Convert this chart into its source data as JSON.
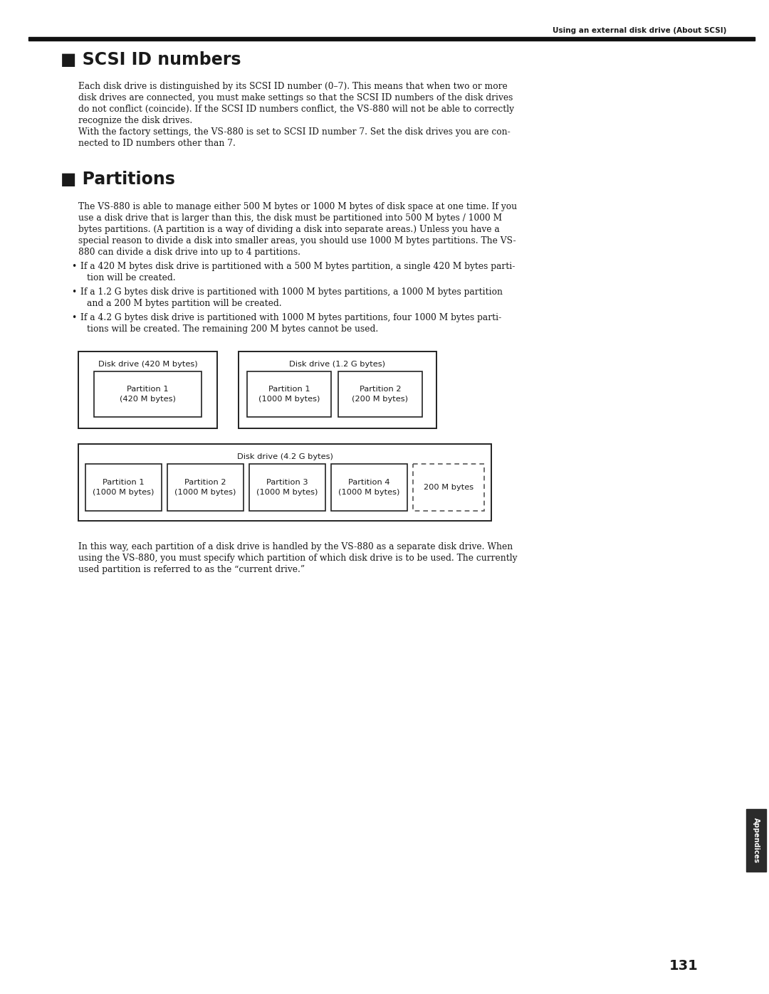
{
  "page_title": "Using an external disk drive (About SCSI)",
  "page_number": "131",
  "bg_color": "#ffffff",
  "text_color": "#1a1a1a",
  "section1_title": "■ SCSI ID numbers",
  "section2_title": "■ Partitions",
  "appendices_label": "Appendices",
  "body1_lines": [
    "Each disk drive is distinguished by its SCSI ID number (0–7). This means that when two or more",
    "disk drives are connected, you must make settings so that the SCSI ID numbers of the disk drives",
    "do not conflict (coincide). If the SCSI ID numbers conflict, the VS-880 will not be able to correctly",
    "recognize the disk drives.",
    "With the factory settings, the VS-880 is set to SCSI ID number 7. Set the disk drives you are con-",
    "nected to ID numbers other than 7."
  ],
  "body2_lines": [
    "The VS-880 is able to manage either 500 M bytes or 1000 M bytes of disk space at one time. If you",
    "use a disk drive that is larger than this, the disk must be partitioned into 500 M bytes / 1000 M",
    "bytes partitions. (A partition is a way of dividing a disk into separate areas.) Unless you have a",
    "special reason to divide a disk into smaller areas, you should use 1000 M bytes partitions. The VS-",
    "880 can divide a disk drive into up to 4 partitions."
  ],
  "bullet1_lines": [
    "If a 420 M bytes disk drive is partitioned with a 500 M bytes partition, a single 420 M bytes parti-",
    "tion will be created."
  ],
  "bullet2_lines": [
    "If a 1.2 G bytes disk drive is partitioned with 1000 M bytes partitions, a 1000 M bytes partition",
    "and a 200 M bytes partition will be created."
  ],
  "bullet3_lines": [
    "If a 4.2 G bytes disk drive is partitioned with 1000 M bytes partitions, four 1000 M bytes parti-",
    "tions will be created. The remaining 200 M bytes cannot be used."
  ],
  "closing_lines": [
    "In this way, each partition of a disk drive is handled by the VS-880 as a separate disk drive. When",
    "using the VS-880, you must specify which partition of which disk drive is to be used. The currently",
    "used partition is referred to as the “current drive.”"
  ],
  "d1_left_title": "Disk drive (420 M bytes)",
  "d1_left_p1": "Partition 1\n(420 M bytes)",
  "d1_right_title": "Disk drive (1.2 G bytes)",
  "d1_right_p1": "Partition 1\n(1000 M bytes)",
  "d1_right_p2": "Partition 2\n(200 M bytes)",
  "d2_title": "Disk drive (4.2 G bytes)",
  "d2_p1": "Partition 1\n(1000 M bytes)",
  "d2_p2": "Partition 2\n(1000 M bytes)",
  "d2_p3": "Partition 3\n(1000 M bytes)",
  "d2_p4": "Partition 4\n(1000 M bytes)",
  "d2_rem": "200 M bytes"
}
